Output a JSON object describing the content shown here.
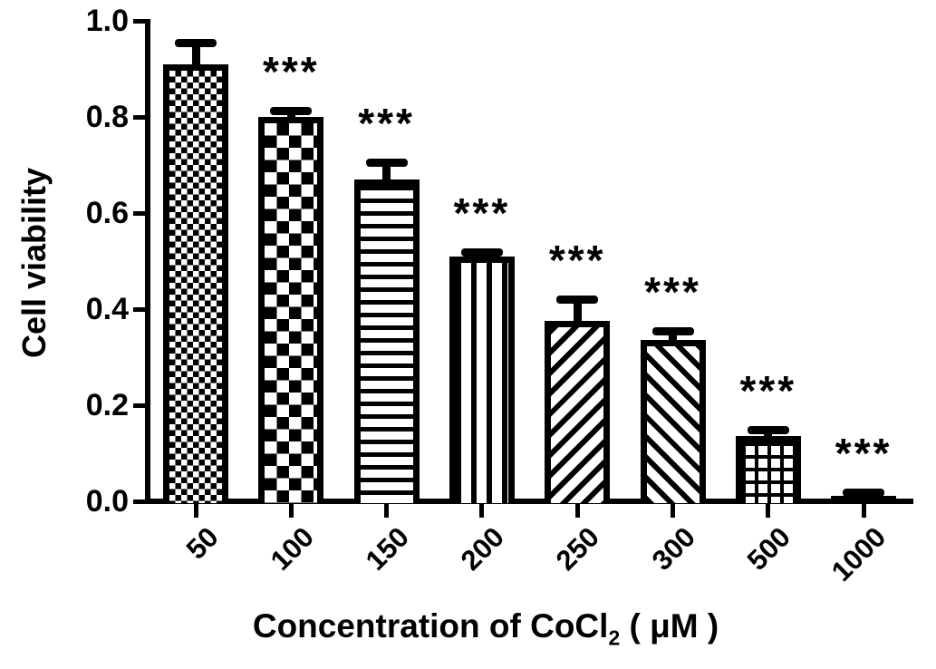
{
  "figure": {
    "background": "#ffffff",
    "ink": "#000000"
  },
  "chart_data": {
    "type": "bar",
    "title": "",
    "ylabel": "Cell viability",
    "xlabel": {
      "text": "Concentration of CoCl2 ( μM )",
      "pre": "Concentration of CoCl",
      "sub": "2",
      "post": " ( μM )"
    },
    "categories": [
      "50",
      "100",
      "150",
      "200",
      "250",
      "300",
      "500",
      "1000"
    ],
    "values": [
      0.91,
      0.8,
      0.67,
      0.51,
      0.375,
      0.335,
      0.135,
      0.012
    ],
    "errors_upper": [
      0.045,
      0.013,
      0.035,
      0.008,
      0.045,
      0.02,
      0.015,
      0.006
    ],
    "significance": [
      "",
      "***",
      "***",
      "***",
      "***",
      "***",
      "***",
      "***"
    ],
    "bar_patterns": [
      "checker-fine",
      "checker-large",
      "horizontal-lines",
      "vertical-lines",
      "diagonal-up",
      "diagonal-down",
      "grid",
      "solid"
    ],
    "bar_fill_color": "#000000",
    "y_ticks": [
      "0.0",
      "0.2",
      "0.4",
      "0.6",
      "0.8",
      "1.0"
    ],
    "ylim": [
      0.0,
      1.0
    ],
    "grid": false,
    "legend": "none",
    "error_bar_style": "upper-cap-only"
  }
}
